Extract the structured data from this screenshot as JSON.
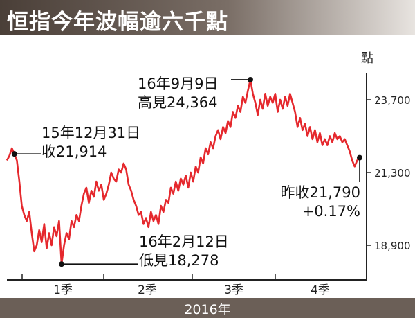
{
  "title": "恒指今年波幅逾六千點",
  "footer_label": "2016年",
  "chart_data": {
    "type": "line",
    "ylabel": "點",
    "xlabel": "2016年",
    "ylim": [
      17800,
      24600
    ],
    "yticks": [
      18900,
      21300,
      23700
    ],
    "yticklabels": [
      "18,900",
      "21,300",
      "23,700"
    ],
    "quarters": [
      "1季",
      "2季",
      "3季",
      "4季"
    ],
    "series": [
      {
        "values": [
          21700,
          21850,
          22100,
          21914,
          21700,
          21000,
          20200,
          19900,
          19700,
          20000,
          19300,
          18700,
          18900,
          19400,
          19000,
          19600,
          18800,
          19300,
          18900,
          19500,
          19200,
          19700,
          18278,
          18900,
          19300,
          19100,
          19700,
          19500,
          19900,
          19700,
          20200,
          20600,
          20800,
          20300,
          20700,
          20500,
          21000,
          20700,
          20900,
          20400,
          20600,
          20900,
          21300,
          21100,
          21000,
          21400,
          21300,
          21600,
          21400,
          20900,
          20700,
          20400,
          20200,
          19900,
          20000,
          19600,
          19800,
          19500,
          20000,
          19700,
          19900,
          19600,
          20200,
          20000,
          20400,
          20300,
          20800,
          20600,
          21000,
          20700,
          21100,
          20900,
          21200,
          20800,
          21300,
          21000,
          21500,
          21300,
          21800,
          21600,
          22100,
          21900,
          22300,
          22100,
          22500,
          22700,
          22400,
          22800,
          22600,
          23000,
          22800,
          23300,
          23100,
          23500,
          23300,
          23800,
          23600,
          24000,
          24364,
          23900,
          23600,
          23200,
          23700,
          23400,
          23900,
          23500,
          23800,
          23600,
          23900,
          23300,
          23700,
          23400,
          23800,
          23500,
          23900,
          23600,
          23300,
          22800,
          23100,
          22700,
          22900,
          22500,
          22800,
          22400,
          22700,
          22300,
          22600,
          22200,
          22400,
          22200,
          22500,
          22300,
          22600,
          22400,
          22500,
          22300,
          22400,
          22200,
          22000,
          21700,
          21500,
          21700,
          21790
        ]
      }
    ],
    "annotations": [
      {
        "lines": [
          "15年12月31日",
          "收21,914"
        ],
        "value": 21914
      },
      {
        "lines": [
          "16年9月9日",
          "高見24,364"
        ],
        "value": 24364
      },
      {
        "lines": [
          "16年2月12日",
          "低見18,278"
        ],
        "value": 18278
      },
      {
        "lines": [
          "昨收21,790",
          "+0.17%"
        ],
        "value": 21790
      }
    ],
    "line_color": "#e5282d",
    "grid": false,
    "legend": "none"
  }
}
